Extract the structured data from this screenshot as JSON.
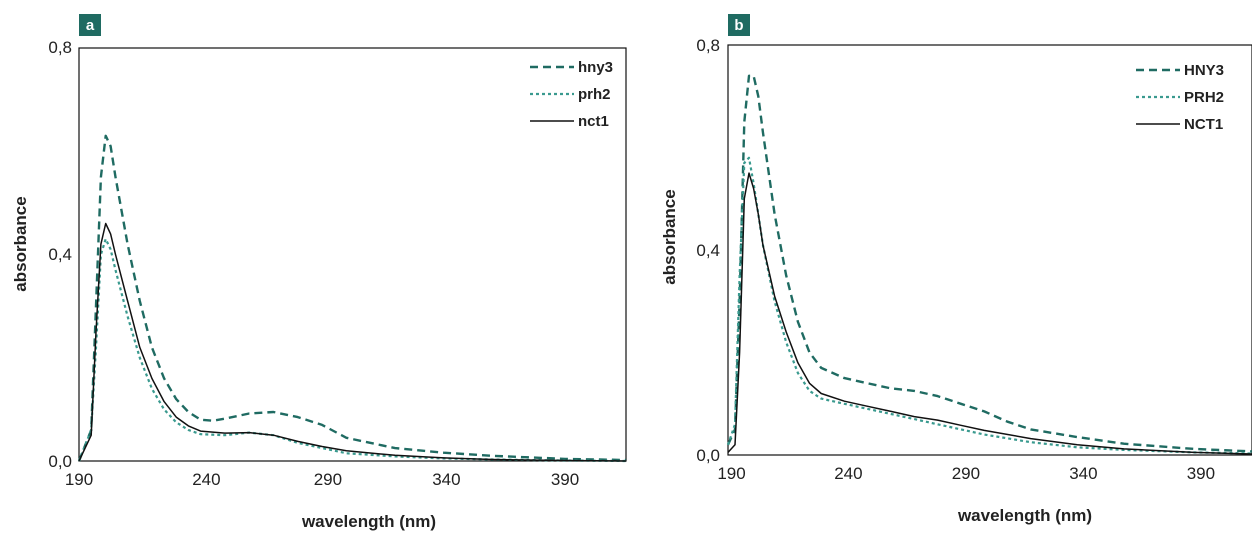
{
  "colors": {
    "dashed": "#1f6b62",
    "dotted": "#3a9a8f",
    "solid": "#111111",
    "badge": "#1f6b62",
    "frame": "#111111"
  },
  "chart_data": [
    {
      "type": "line",
      "panel_label": "a",
      "xlabel": "wavelength (nm)",
      "ylabel": "absorbance",
      "xlim": [
        190,
        415
      ],
      "ylim": [
        0,
        0.8
      ],
      "x_ticks": [
        "190",
        "240",
        "290",
        "340",
        "390"
      ],
      "y_ticks": [
        "0,0",
        "0,4",
        "0,8"
      ],
      "grid": false,
      "legend_position": "top-right",
      "series": [
        {
          "name": "hny3",
          "style": "dashed",
          "x": [
            190,
            195,
            197,
            199,
            201,
            203,
            205,
            210,
            215,
            220,
            225,
            230,
            235,
            240,
            245,
            250,
            260,
            270,
            280,
            290,
            300,
            320,
            340,
            360,
            390,
            415
          ],
          "y": [
            0,
            0.06,
            0.3,
            0.55,
            0.63,
            0.61,
            0.55,
            0.42,
            0.31,
            0.22,
            0.16,
            0.12,
            0.095,
            0.08,
            0.078,
            0.082,
            0.092,
            0.095,
            0.085,
            0.07,
            0.045,
            0.025,
            0.016,
            0.01,
            0.004,
            0.002
          ]
        },
        {
          "name": "prh2",
          "style": "dotted",
          "x": [
            190,
            195,
            197,
            199,
            201,
            203,
            205,
            210,
            215,
            220,
            225,
            230,
            235,
            240,
            250,
            260,
            270,
            280,
            290,
            300,
            320,
            340,
            360,
            390,
            415
          ],
          "y": [
            0,
            0.06,
            0.22,
            0.4,
            0.43,
            0.41,
            0.37,
            0.28,
            0.2,
            0.14,
            0.1,
            0.075,
            0.06,
            0.052,
            0.05,
            0.055,
            0.05,
            0.035,
            0.025,
            0.015,
            0.009,
            0.005,
            0.003,
            0.001,
            0
          ]
        },
        {
          "name": "nct1",
          "style": "solid",
          "x": [
            190,
            195,
            197,
            199,
            201,
            203,
            205,
            210,
            215,
            220,
            225,
            230,
            235,
            240,
            250,
            260,
            270,
            280,
            290,
            300,
            320,
            340,
            360,
            390,
            415
          ],
          "y": [
            0,
            0.05,
            0.25,
            0.42,
            0.46,
            0.44,
            0.4,
            0.31,
            0.22,
            0.16,
            0.115,
            0.085,
            0.068,
            0.058,
            0.054,
            0.055,
            0.05,
            0.038,
            0.028,
            0.02,
            0.011,
            0.006,
            0.003,
            0.001,
            0
          ]
        }
      ]
    },
    {
      "type": "line",
      "panel_label": "b",
      "xlabel": "wavelength (nm)",
      "ylabel": "absorbance",
      "xlim": [
        190,
        415
      ],
      "ylim": [
        0,
        0.8
      ],
      "x_ticks": [
        "190",
        "240",
        "290",
        "340",
        "390"
      ],
      "y_ticks": [
        "0,0",
        "0,4",
        "0,8"
      ],
      "grid": false,
      "legend_position": "top-right",
      "series": [
        {
          "name": "HNY3",
          "style": "dashed",
          "x": [
            190,
            193,
            195,
            197,
            199,
            201,
            203,
            205,
            210,
            215,
            220,
            225,
            230,
            240,
            250,
            260,
            270,
            280,
            290,
            300,
            310,
            320,
            340,
            360,
            390,
            415
          ],
          "y": [
            0.02,
            0.05,
            0.3,
            0.65,
            0.74,
            0.74,
            0.7,
            0.63,
            0.47,
            0.35,
            0.26,
            0.2,
            0.17,
            0.15,
            0.14,
            0.13,
            0.125,
            0.115,
            0.1,
            0.085,
            0.065,
            0.05,
            0.035,
            0.022,
            0.012,
            0.007
          ]
        },
        {
          "name": "PRH2",
          "style": "dotted",
          "x": [
            190,
            193,
            195,
            197,
            199,
            201,
            203,
            205,
            210,
            215,
            220,
            225,
            230,
            240,
            250,
            260,
            270,
            280,
            290,
            300,
            320,
            340,
            360,
            390,
            415
          ],
          "y": [
            0.02,
            0.06,
            0.35,
            0.57,
            0.58,
            0.53,
            0.47,
            0.41,
            0.3,
            0.22,
            0.16,
            0.125,
            0.11,
            0.1,
            0.09,
            0.08,
            0.07,
            0.06,
            0.05,
            0.04,
            0.025,
            0.015,
            0.01,
            0.005,
            0.003
          ]
        },
        {
          "name": "NCT1",
          "style": "solid",
          "x": [
            190,
            193,
            195,
            197,
            199,
            201,
            203,
            205,
            210,
            215,
            220,
            225,
            230,
            240,
            250,
            260,
            270,
            280,
            290,
            300,
            320,
            340,
            360,
            390,
            415
          ],
          "y": [
            0.005,
            0.02,
            0.2,
            0.5,
            0.55,
            0.52,
            0.47,
            0.41,
            0.31,
            0.24,
            0.18,
            0.14,
            0.12,
            0.105,
            0.095,
            0.085,
            0.075,
            0.068,
            0.058,
            0.048,
            0.032,
            0.02,
            0.012,
            0.005,
            0.002
          ]
        }
      ]
    }
  ]
}
